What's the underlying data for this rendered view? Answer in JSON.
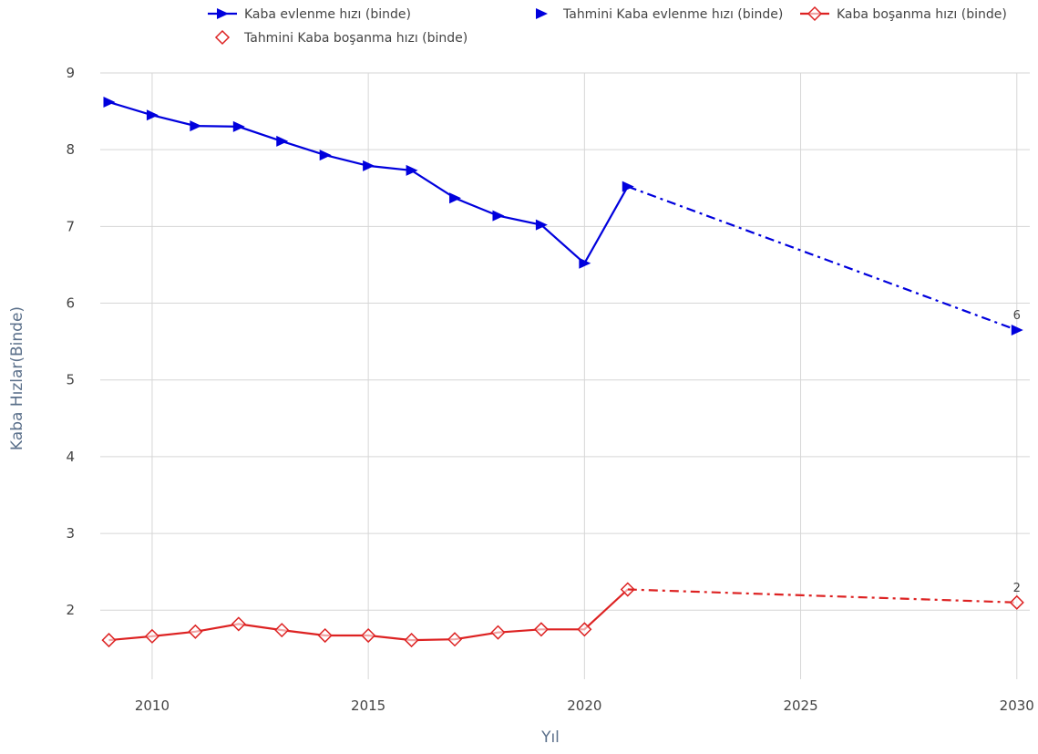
{
  "chart_data": {
    "type": "line",
    "title": "",
    "xlabel": "Yıl",
    "ylabel": "Kaba Hızlar(Binde)",
    "xlim": [
      2008.8,
      2030.3
    ],
    "ylim": [
      1.1,
      9.0
    ],
    "xticks": [
      2010,
      2015,
      2020,
      2025,
      2030
    ],
    "yticks": [
      2,
      3,
      4,
      5,
      6,
      7,
      8,
      9
    ],
    "grid": true,
    "legend_position": "top",
    "series": [
      {
        "name": "Kaba evlenme hızı (binde)",
        "color": "#0000dd",
        "line": "solid",
        "marker": "triangle-right",
        "x": [
          2009,
          2010,
          2011,
          2012,
          2013,
          2014,
          2015,
          2016,
          2017,
          2018,
          2019,
          2020,
          2021
        ],
        "y": [
          8.62,
          8.45,
          8.31,
          8.3,
          8.11,
          7.93,
          7.79,
          7.73,
          7.37,
          7.14,
          7.02,
          6.52,
          7.52
        ]
      },
      {
        "name": "Tahmini Kaba evlenme hızı (binde)",
        "color": "#0000dd",
        "line": "dashdot",
        "marker": "triangle-right",
        "x": [
          2021,
          2030
        ],
        "y": [
          7.52,
          5.65
        ],
        "end_label": "6"
      },
      {
        "name": "Kaba boşanma hızı (binde)",
        "color": "#dd2222",
        "line": "solid",
        "marker": "diamond-open",
        "x": [
          2009,
          2010,
          2011,
          2012,
          2013,
          2014,
          2015,
          2016,
          2017,
          2018,
          2019,
          2020,
          2021
        ],
        "y": [
          1.61,
          1.66,
          1.72,
          1.82,
          1.74,
          1.67,
          1.67,
          1.61,
          1.62,
          1.71,
          1.75,
          1.75,
          2.27
        ]
      },
      {
        "name": "Tahmini Kaba boşanma hızı (binde)",
        "color": "#dd2222",
        "line": "dashdot",
        "marker": "diamond-open",
        "x": [
          2021,
          2030
        ],
        "y": [
          2.27,
          2.1
        ],
        "end_label": "2"
      }
    ]
  }
}
